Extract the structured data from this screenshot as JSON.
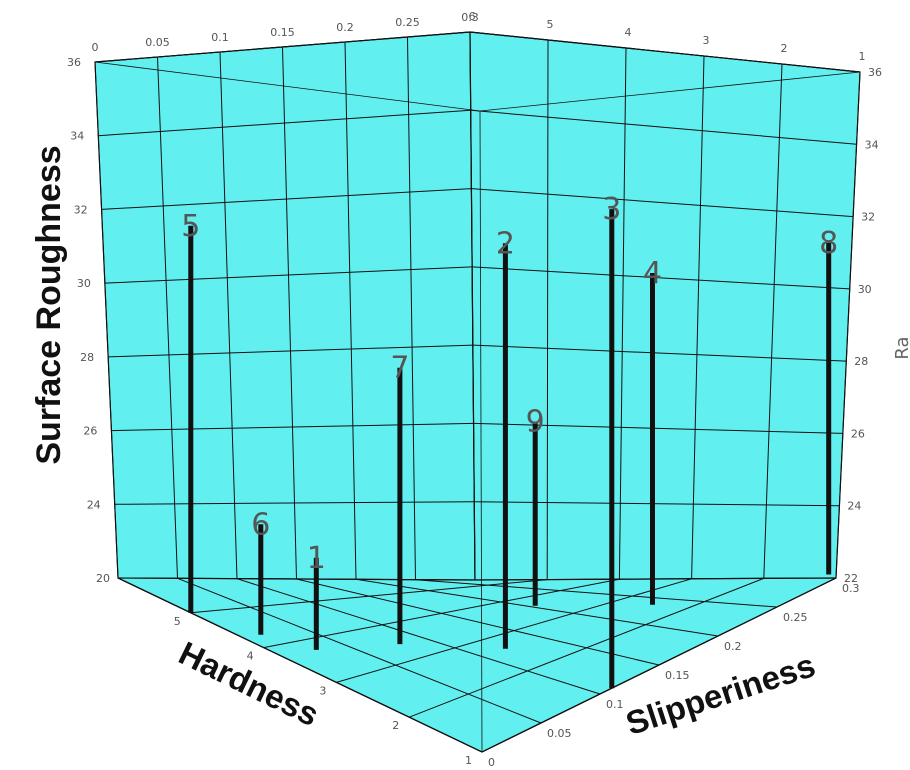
{
  "chart_data": {
    "type": "bar3d",
    "z_label": "Surface Roughness",
    "z_label_right": "Ra",
    "x_label": "Hardness",
    "y_label": "Slipperiness",
    "zlim": [
      22,
      36
    ],
    "xlim": [
      1,
      6
    ],
    "ylim": [
      0,
      0.3
    ],
    "z_ticks_left": [
      "24",
      "26",
      "28",
      "30",
      "32",
      "34",
      "36"
    ],
    "z_tick_left_base": "20",
    "z_ticks_right": [
      "22",
      "24",
      "26",
      "28",
      "30",
      "32",
      "34",
      "36"
    ],
    "top_hardness_ticks": [
      "6",
      "5",
      "4",
      "3",
      "2",
      "1"
    ],
    "top_slipperiness_ticks": [
      "0",
      "0.05",
      "0.1",
      "0.15",
      "0.2",
      "0.25",
      "0.3"
    ],
    "bottom_hardness_ticks": [
      "5",
      "4",
      "3",
      "2",
      "1"
    ],
    "bottom_slipperiness_ticks": [
      "0",
      "0.05",
      "0.1",
      "0.15",
      "0.2",
      "0.25",
      "0.3"
    ],
    "colors": {
      "pane": "#62efef",
      "grid": "#111111",
      "bar": "#111111"
    },
    "samples": [
      {
        "label": "1",
        "hardness": 3.6,
        "slipperiness": 0.02,
        "ra": 24.5
      },
      {
        "label": "2",
        "hardness": 2.3,
        "slipperiness": 0.1,
        "ra": 33.0
      },
      {
        "label": "3",
        "hardness": 1.0,
        "slipperiness": 0.11,
        "ra": 35.0
      },
      {
        "label": "4",
        "hardness": 1.9,
        "slipperiness": 0.2,
        "ra": 31.0
      },
      {
        "label": "5",
        "hardness": 5.0,
        "slipperiness": 0.0,
        "ra": 32.5
      },
      {
        "label": "6",
        "hardness": 4.2,
        "slipperiness": 0.01,
        "ra": 25.0
      },
      {
        "label": "7",
        "hardness": 3.1,
        "slipperiness": 0.06,
        "ra": 29.5
      },
      {
        "label": "8",
        "hardness": 1.1,
        "slipperiness": 0.3,
        "ra": 31.0
      },
      {
        "label": "9",
        "hardness": 2.7,
        "slipperiness": 0.15,
        "ra": 27.0
      }
    ]
  }
}
